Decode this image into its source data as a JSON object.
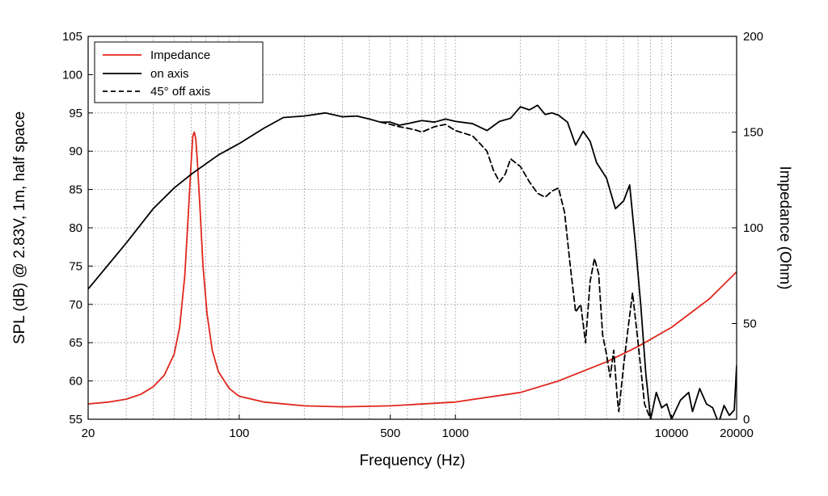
{
  "chart_data": {
    "type": "line",
    "title": "",
    "xlabel": "Frequency (Hz)",
    "ylabel_left": "SPL (dB) @ 2.83V, 1m, half space",
    "ylabel_right": "Impedance (Ohm)",
    "x_scale": "log",
    "xlim": [
      20,
      20000
    ],
    "ylim_left": [
      55,
      105
    ],
    "ylim_right": [
      0,
      200
    ],
    "x_ticks": [
      20,
      100,
      500,
      1000,
      10000,
      20000
    ],
    "x_tick_labels": [
      "20",
      "100",
      "500",
      "1000",
      "10000",
      "20000"
    ],
    "y_ticks_left": [
      55,
      60,
      65,
      70,
      75,
      80,
      85,
      90,
      95,
      100,
      105
    ],
    "y_tick_labels_left": [
      "55",
      "60",
      "65",
      "70",
      "75",
      "80",
      "85",
      "90",
      "95",
      "100",
      "105"
    ],
    "y_ticks_right": [
      0,
      50,
      100,
      150,
      200
    ],
    "y_tick_labels_right": [
      "0",
      "50",
      "100",
      "150",
      "200"
    ],
    "grid": true,
    "legend_position": "top-left",
    "legend": [
      "Impedance",
      "on axis",
      "45° off axis"
    ],
    "series": [
      {
        "name": "Impedance",
        "axis": "right",
        "color": "#e0261b",
        "dash": "solid",
        "points": [
          [
            20,
            8
          ],
          [
            25,
            9
          ],
          [
            30,
            10.5
          ],
          [
            35,
            13
          ],
          [
            40,
            17
          ],
          [
            45,
            23
          ],
          [
            50,
            34
          ],
          [
            53,
            48
          ],
          [
            56,
            75
          ],
          [
            58,
            105
          ],
          [
            60,
            135
          ],
          [
            61,
            148
          ],
          [
            62,
            150
          ],
          [
            63,
            146
          ],
          [
            64,
            135
          ],
          [
            66,
            108
          ],
          [
            68,
            80
          ],
          [
            71,
            55
          ],
          [
            75,
            36
          ],
          [
            80,
            25
          ],
          [
            90,
            16
          ],
          [
            100,
            12
          ],
          [
            130,
            9
          ],
          [
            200,
            7
          ],
          [
            300,
            6.5
          ],
          [
            500,
            7
          ],
          [
            1000,
            9
          ],
          [
            2000,
            14
          ],
          [
            3000,
            20
          ],
          [
            5000,
            30
          ],
          [
            7000,
            38
          ],
          [
            10000,
            48
          ],
          [
            15000,
            63
          ],
          [
            20000,
            77
          ]
        ]
      },
      {
        "name": "on axis",
        "axis": "left",
        "color": "#000000",
        "dash": "solid",
        "points": [
          [
            20,
            72
          ],
          [
            30,
            78
          ],
          [
            40,
            82.5
          ],
          [
            50,
            85.2
          ],
          [
            60,
            87
          ],
          [
            80,
            89.5
          ],
          [
            100,
            91
          ],
          [
            130,
            93
          ],
          [
            160,
            94.4
          ],
          [
            200,
            94.6
          ],
          [
            250,
            95
          ],
          [
            300,
            94.5
          ],
          [
            350,
            94.6
          ],
          [
            400,
            94.2
          ],
          [
            450,
            93.8
          ],
          [
            500,
            93.8
          ],
          [
            550,
            93.4
          ],
          [
            600,
            93.6
          ],
          [
            700,
            94
          ],
          [
            800,
            93.8
          ],
          [
            900,
            94.2
          ],
          [
            1000,
            93.9
          ],
          [
            1200,
            93.6
          ],
          [
            1400,
            92.7
          ],
          [
            1600,
            93.9
          ],
          [
            1800,
            94.3
          ],
          [
            2000,
            95.8
          ],
          [
            2200,
            95.4
          ],
          [
            2400,
            96
          ],
          [
            2600,
            94.8
          ],
          [
            2800,
            95
          ],
          [
            3000,
            94.7
          ],
          [
            3300,
            93.8
          ],
          [
            3600,
            90.8
          ],
          [
            3900,
            92.6
          ],
          [
            4200,
            91.3
          ],
          [
            4500,
            88.5
          ],
          [
            5000,
            86.5
          ],
          [
            5500,
            82.5
          ],
          [
            6000,
            83.5
          ],
          [
            6400,
            85.6
          ],
          [
            6800,
            78
          ],
          [
            7200,
            70
          ],
          [
            7600,
            61
          ],
          [
            8000,
            55
          ],
          [
            8500,
            58.5
          ],
          [
            9000,
            56.5
          ],
          [
            9500,
            57
          ],
          [
            10000,
            55
          ],
          [
            11000,
            57.5
          ],
          [
            12000,
            58.5
          ],
          [
            12500,
            56
          ],
          [
            13500,
            59
          ],
          [
            14500,
            57
          ],
          [
            15500,
            56.5
          ],
          [
            16500,
            54.5
          ],
          [
            17500,
            56.8
          ],
          [
            18500,
            55.5
          ],
          [
            19500,
            56.2
          ],
          [
            20000,
            62
          ]
        ]
      },
      {
        "name": "45° off axis",
        "axis": "left",
        "color": "#000000",
        "dash": "dashed",
        "points": [
          [
            450,
            93.8
          ],
          [
            500,
            93.5
          ],
          [
            550,
            93.2
          ],
          [
            600,
            93
          ],
          [
            650,
            92.8
          ],
          [
            700,
            92.5
          ],
          [
            800,
            93.2
          ],
          [
            900,
            93.5
          ],
          [
            1000,
            92.7
          ],
          [
            1200,
            92
          ],
          [
            1300,
            91
          ],
          [
            1400,
            90
          ],
          [
            1500,
            87.5
          ],
          [
            1600,
            86
          ],
          [
            1700,
            87
          ],
          [
            1800,
            89
          ],
          [
            2000,
            88
          ],
          [
            2200,
            86
          ],
          [
            2400,
            84.5
          ],
          [
            2600,
            84
          ],
          [
            2800,
            84.8
          ],
          [
            3000,
            85.2
          ],
          [
            3200,
            82
          ],
          [
            3400,
            75
          ],
          [
            3600,
            69
          ],
          [
            3800,
            70
          ],
          [
            4000,
            65
          ],
          [
            4200,
            73
          ],
          [
            4400,
            76
          ],
          [
            4600,
            74
          ],
          [
            4800,
            66
          ],
          [
            5000,
            63.5
          ],
          [
            5200,
            60.5
          ],
          [
            5400,
            64
          ],
          [
            5600,
            58
          ],
          [
            5700,
            56
          ],
          [
            6000,
            62
          ],
          [
            6300,
            67
          ],
          [
            6600,
            71.5
          ],
          [
            7000,
            65
          ],
          [
            7500,
            57
          ],
          [
            8000,
            55
          ],
          [
            8200,
            54
          ]
        ]
      }
    ]
  }
}
